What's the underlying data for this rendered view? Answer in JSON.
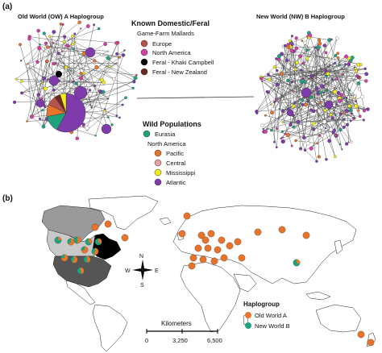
{
  "panel_a": {
    "label": "(a)",
    "ow_title": "Old World (OW) A Haplogroup",
    "nw_title": "New World (NW) B Haplogroup",
    "known_legend": {
      "title": "Known Domestic/Feral",
      "subtitle": "Game-Farm Mallards",
      "items": [
        {
          "label": "Europe",
          "color": "#b8524d"
        },
        {
          "label": "North America",
          "color": "#d43fa3"
        },
        {
          "label": "Feral - Khaki Campbell",
          "color": "#000000"
        },
        {
          "label": "Feral - New Zealand",
          "color": "#6b2a1f"
        }
      ]
    },
    "wild_legend": {
      "title": "Wild Populations",
      "eurasia": {
        "label": "Eurasia",
        "color": "#1ea37c"
      },
      "na_label": "North America",
      "items": [
        {
          "label": "Pacific",
          "color": "#e8732a"
        },
        {
          "label": "Central",
          "color": "#e9a0a0"
        },
        {
          "label": "Mississippi",
          "color": "#f2ee1c"
        },
        {
          "label": "Atlantic",
          "color": "#7f3bab"
        }
      ]
    }
  },
  "panel_b": {
    "label": "(b)",
    "compass": {
      "n": "N",
      "s": "S",
      "e": "E",
      "w": "W"
    },
    "scale": {
      "title": "Kilometers",
      "ticks": [
        "0",
        "3,250",
        "6,500"
      ]
    },
    "legend": {
      "title": "Haplogroup",
      "items": [
        {
          "label": "Old World A",
          "color": "#e8732a"
        },
        {
          "label": "New World B",
          "color": "#1ea37c"
        }
      ]
    }
  }
}
